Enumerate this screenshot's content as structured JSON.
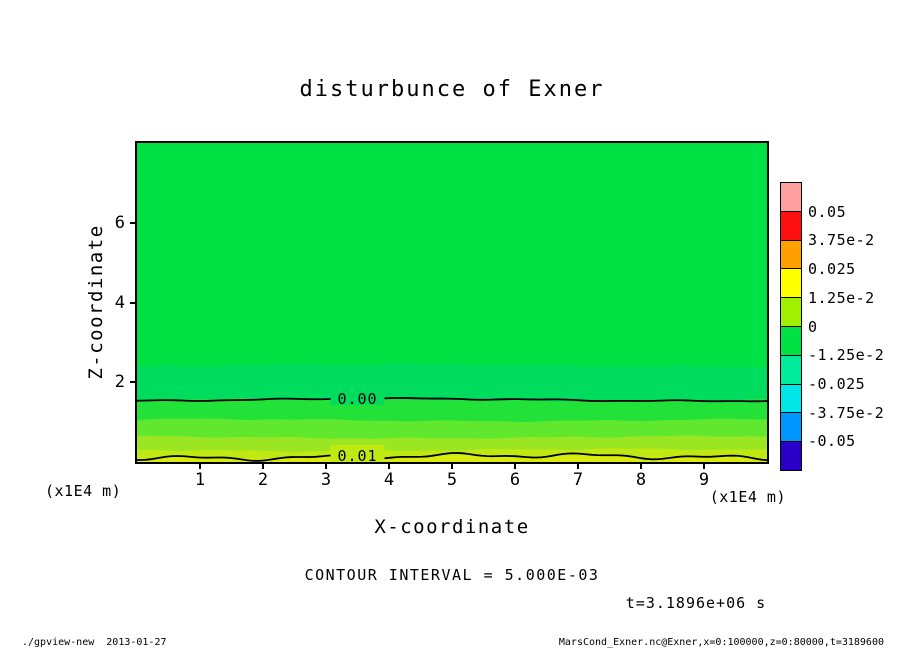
{
  "chart_data": {
    "type": "heatmap",
    "subtype": "filled-contour",
    "title": "disturbunce of Exner",
    "xlabel": "X-coordinate",
    "ylabel": "Z-coordinate",
    "x_axis_unit": "(x1E4 m)",
    "y_axis_unit": "(x1E4 m)",
    "xlim": [
      0,
      10
    ],
    "ylim": [
      0,
      8
    ],
    "x_ticks": [
      1,
      2,
      3,
      4,
      5,
      6,
      7,
      8,
      9
    ],
    "y_ticks": [
      2,
      4,
      6
    ],
    "grid": false,
    "bands": [
      {
        "z_top": 8.0,
        "color": "#00E243"
      },
      {
        "z_top": 2.42,
        "color": "#00DC5E"
      },
      {
        "z_top": 1.56,
        "color": "#22E23A"
      },
      {
        "z_top": 1.05,
        "color": "#60E82E"
      },
      {
        "z_top": 0.62,
        "color": "#9AE622"
      },
      {
        "z_top": 0.3,
        "color": "#C0E914"
      },
      {
        "z_top": 0.13,
        "color": "#D7EB0C"
      }
    ],
    "contours": [
      {
        "label": "0.00",
        "z": 1.56,
        "label_x": 3.5,
        "label_bg": "#00DC5E",
        "amp": 1.2,
        "rough": 0.5
      },
      {
        "label": "0.01",
        "z": 0.13,
        "label_x": 3.5,
        "label_bg": "#C0E914",
        "amp": 1.5,
        "rough": 1.8
      }
    ],
    "colorbar": {
      "segment_colors_top_to_bottom": [
        "#FFA0A0",
        "#FF1010",
        "#FFA000",
        "#FFFF00",
        "#A0F000",
        "#00E243",
        "#00EC9C",
        "#00E6E6",
        "#0096FF",
        "#2A00C8"
      ],
      "boundary_labels_top_to_bottom": [
        "0.05",
        "3.75e-2",
        "0.025",
        "1.25e-2",
        "0",
        "-1.25e-2",
        "-0.025",
        "-3.75e-2",
        "-0.05"
      ]
    },
    "annotations": {
      "contour_interval": "CONTOUR INTERVAL = 5.000E-03",
      "time": "t=3.1896e+06 s"
    }
  },
  "footer": {
    "left": "./gpview-new  2013-01-27",
    "right": "MarsCond_Exner.nc@Exner,x=0:100000,z=0:80000,t=3189600"
  }
}
